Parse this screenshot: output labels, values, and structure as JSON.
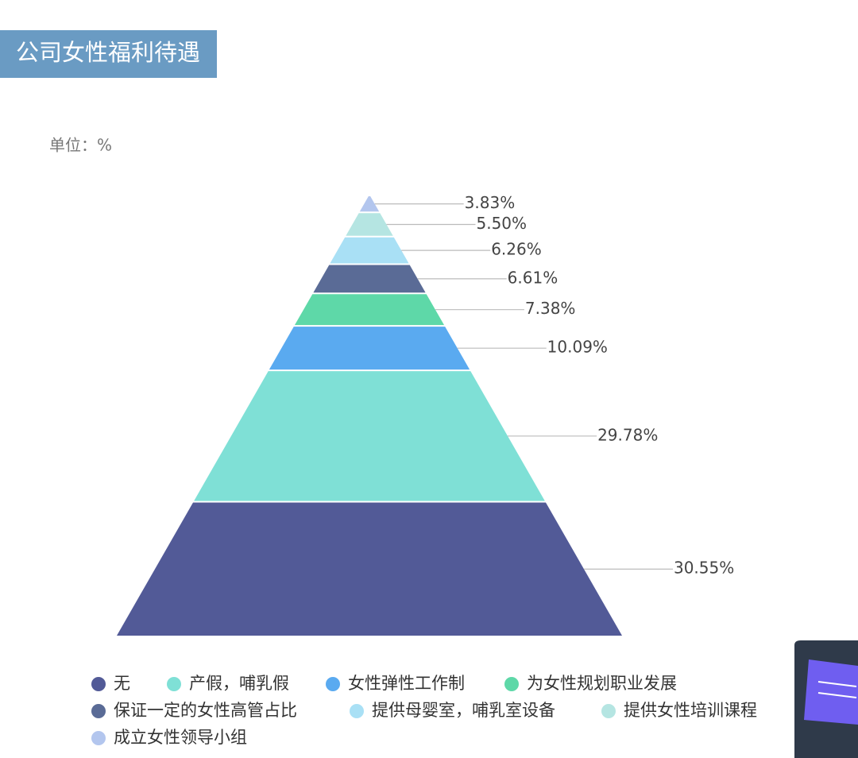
{
  "chart_data": {
    "type": "pyramid",
    "title": "公司女性福利待遇",
    "unit_label": "单位：%",
    "categories": [
      "无",
      "产假，哺乳假",
      "女性弹性工作制",
      "为女性规划职业发展",
      "保证一定的女性高管占比",
      "提供母婴室，哺乳室设备",
      "提供女性培训课程",
      "成立女性领导小组"
    ],
    "values": [
      30.55,
      29.78,
      10.09,
      7.38,
      6.61,
      6.26,
      5.5,
      3.83
    ],
    "value_labels": [
      "30.55%",
      "29.78%",
      "10.09%",
      "7.38%",
      "6.61%",
      "6.26%",
      "5.50%",
      "3.83%"
    ],
    "colors": [
      "#525a97",
      "#7fe0d6",
      "#5aaaf0",
      "#5ed8a8",
      "#5a6b96",
      "#a9e0f5",
      "#b5e5e2",
      "#b3c6ee"
    ],
    "legend": true
  }
}
